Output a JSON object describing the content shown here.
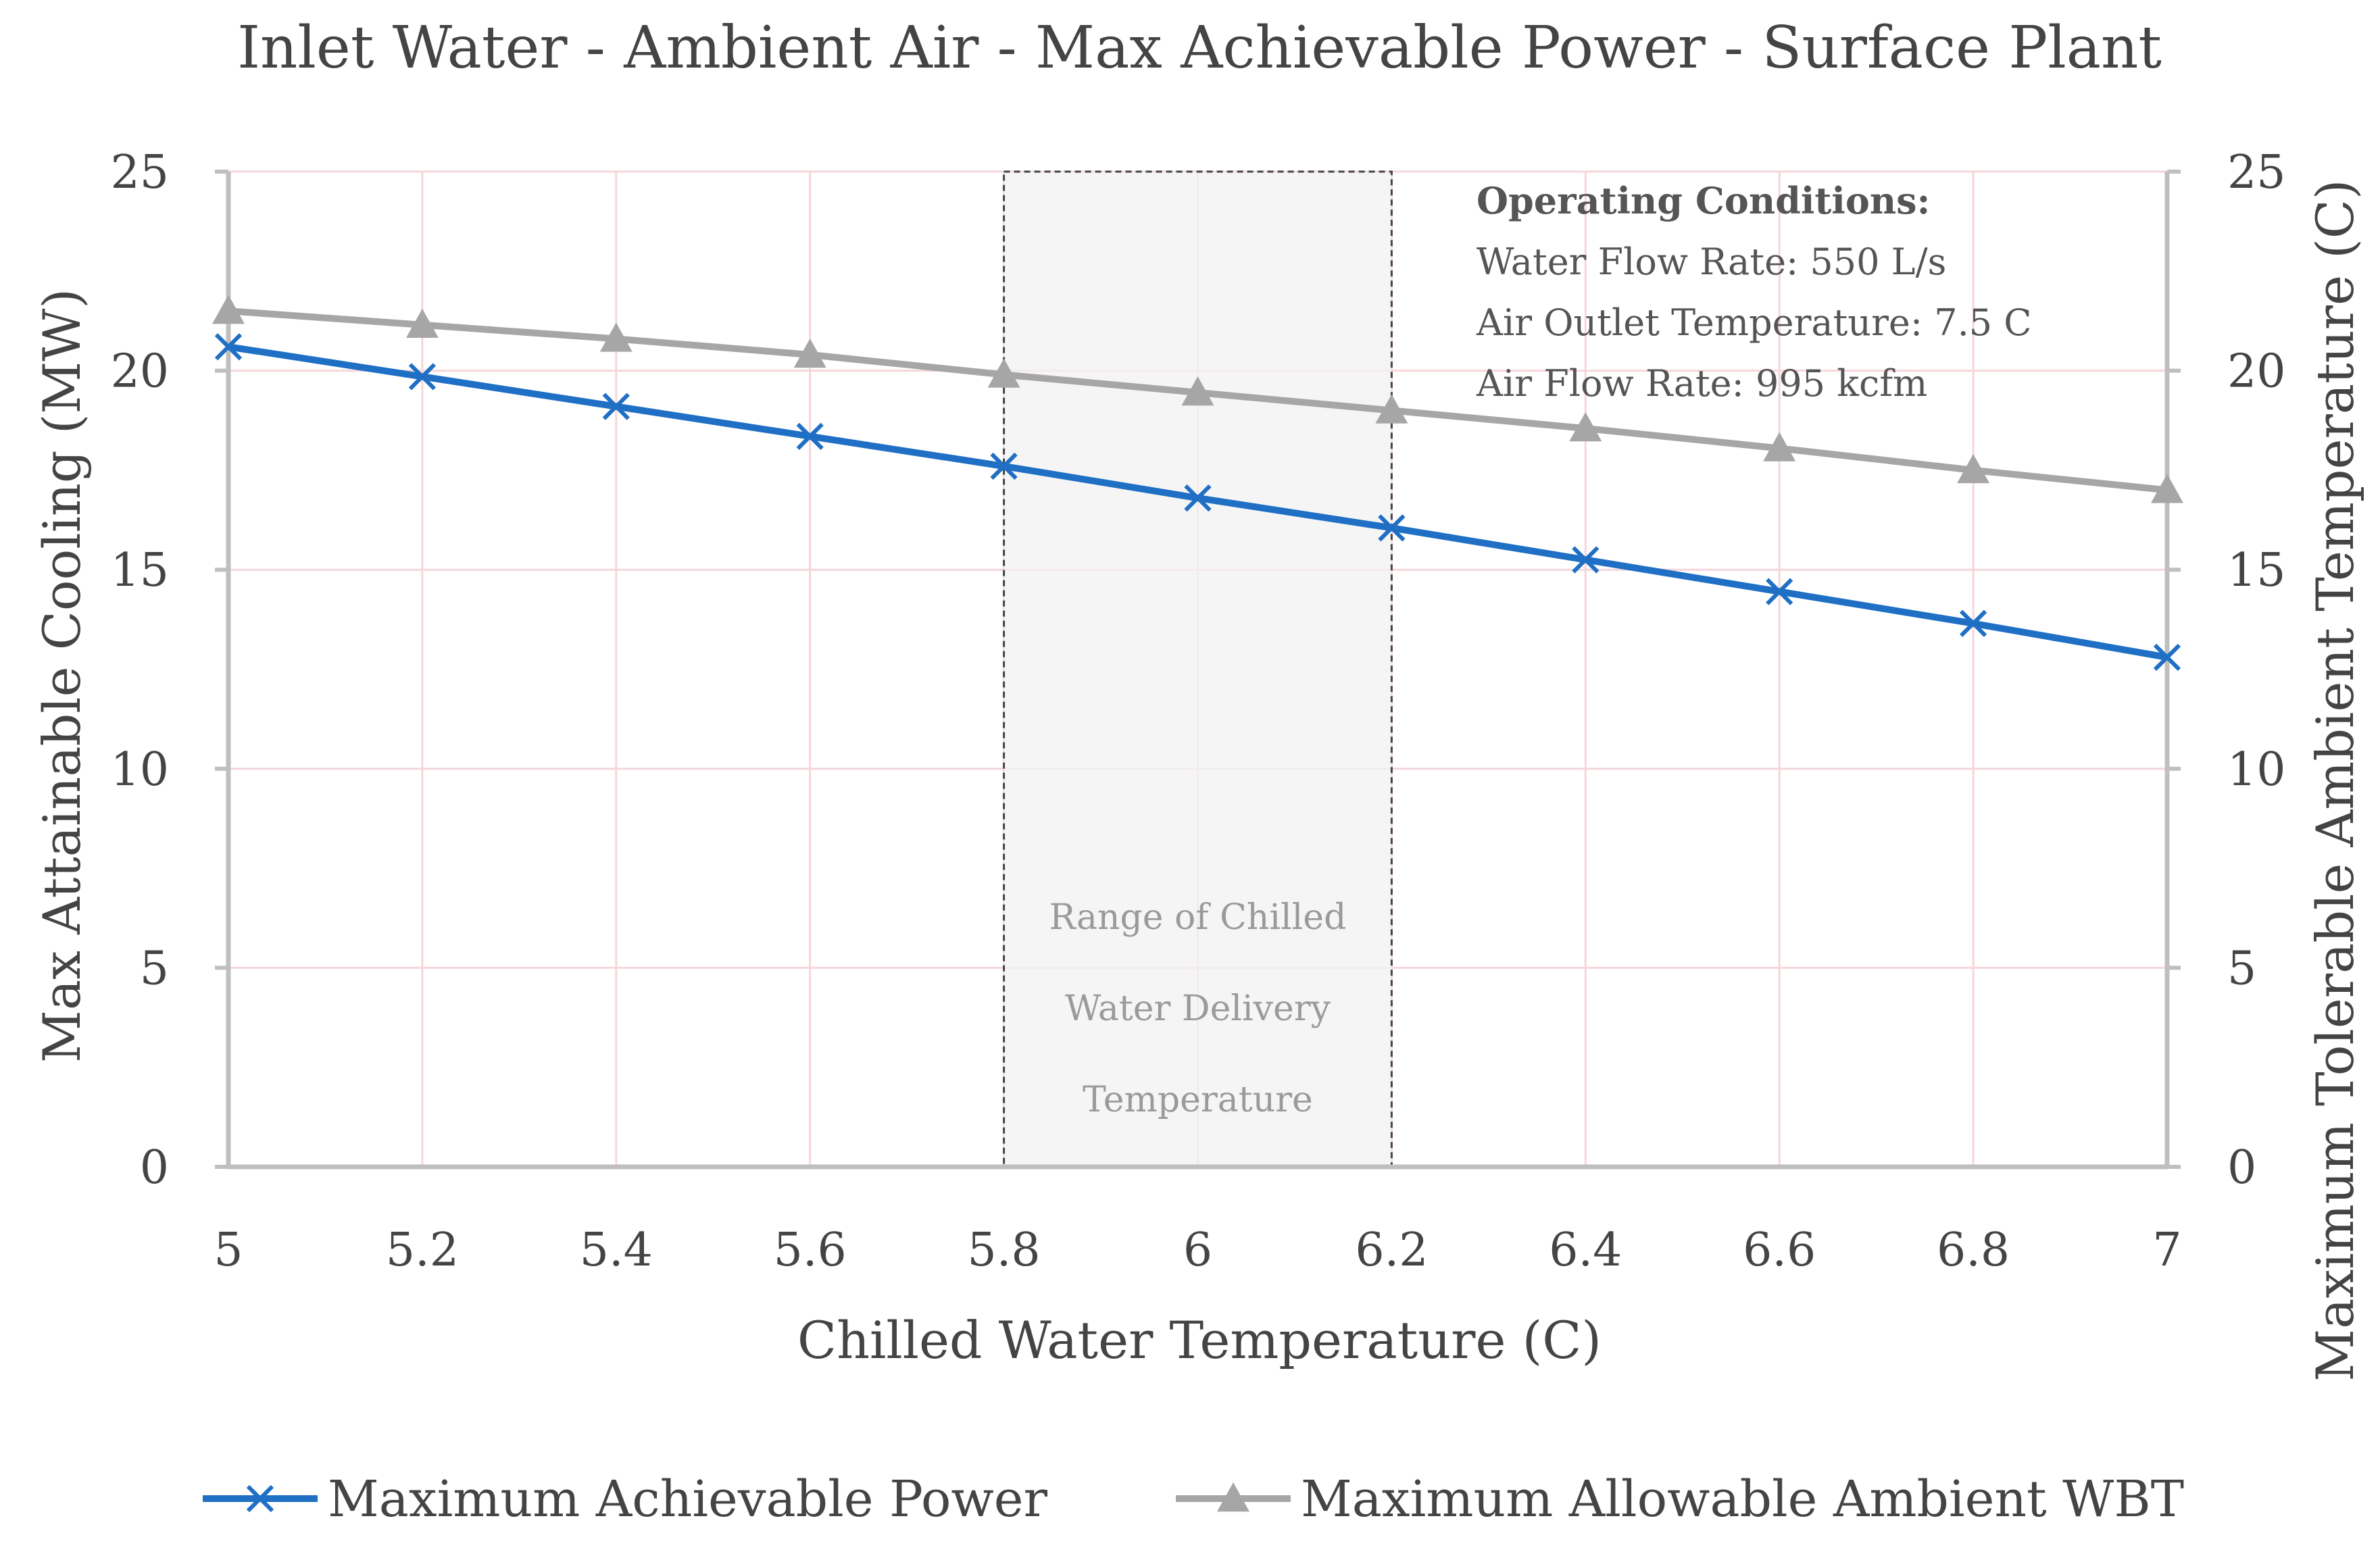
{
  "chart_data": {
    "type": "line",
    "title": "Inlet Water - Ambient Air - Max Achievable Power - Surface Plant",
    "xlabel": "Chilled Water Temperature (C)",
    "ylabel": "Max Attainable Cooling (MW)",
    "y2label": "Maximum Tolerable Ambient Temperature (C)",
    "x": [
      5,
      5.2,
      5.4,
      5.6,
      5.8,
      6,
      6.2,
      6.4,
      6.6,
      6.8,
      7
    ],
    "xtick_labels": [
      "5",
      "5.2",
      "5.4",
      "5.6",
      "5.8",
      "6",
      "6.2",
      "6.4",
      "6.6",
      "6.8",
      "7"
    ],
    "xlim": [
      5,
      7
    ],
    "ylim": [
      0,
      25
    ],
    "y2lim": [
      0,
      25
    ],
    "yticks": [
      "0",
      "5",
      "10",
      "15",
      "20",
      "25"
    ],
    "y2ticks": [
      "0",
      "5",
      "10",
      "15",
      "20",
      "25"
    ],
    "grid": true,
    "legend_position": "bottom",
    "series": [
      {
        "name": "Maximum Achievable Power",
        "axis": "left",
        "marker": "x",
        "color": "#1f6fc5",
        "values": [
          20.6,
          19.85,
          19.1,
          18.35,
          17.6,
          16.8,
          16.05,
          15.25,
          14.45,
          13.65,
          12.8
        ]
      },
      {
        "name": "Maximum Allowable Ambient WBT",
        "axis": "right",
        "marker": "triangle",
        "color": "#a6a6a6",
        "values": [
          21.5,
          21.15,
          20.8,
          20.4,
          19.9,
          19.45,
          19.0,
          18.55,
          18.05,
          17.5,
          17.0
        ]
      }
    ],
    "shaded_range": {
      "x_start": 5.8,
      "x_end": 6.2,
      "label_lines": [
        "Range of Chilled",
        "Water Delivery",
        "Temperature"
      ]
    },
    "annotation": {
      "heading": "Operating Conditions:",
      "lines": [
        "Water Flow Rate: 550 L/s",
        "Air Outlet Temperature: 7.5 C",
        "Air Flow Rate: 995 kcfm"
      ]
    }
  }
}
